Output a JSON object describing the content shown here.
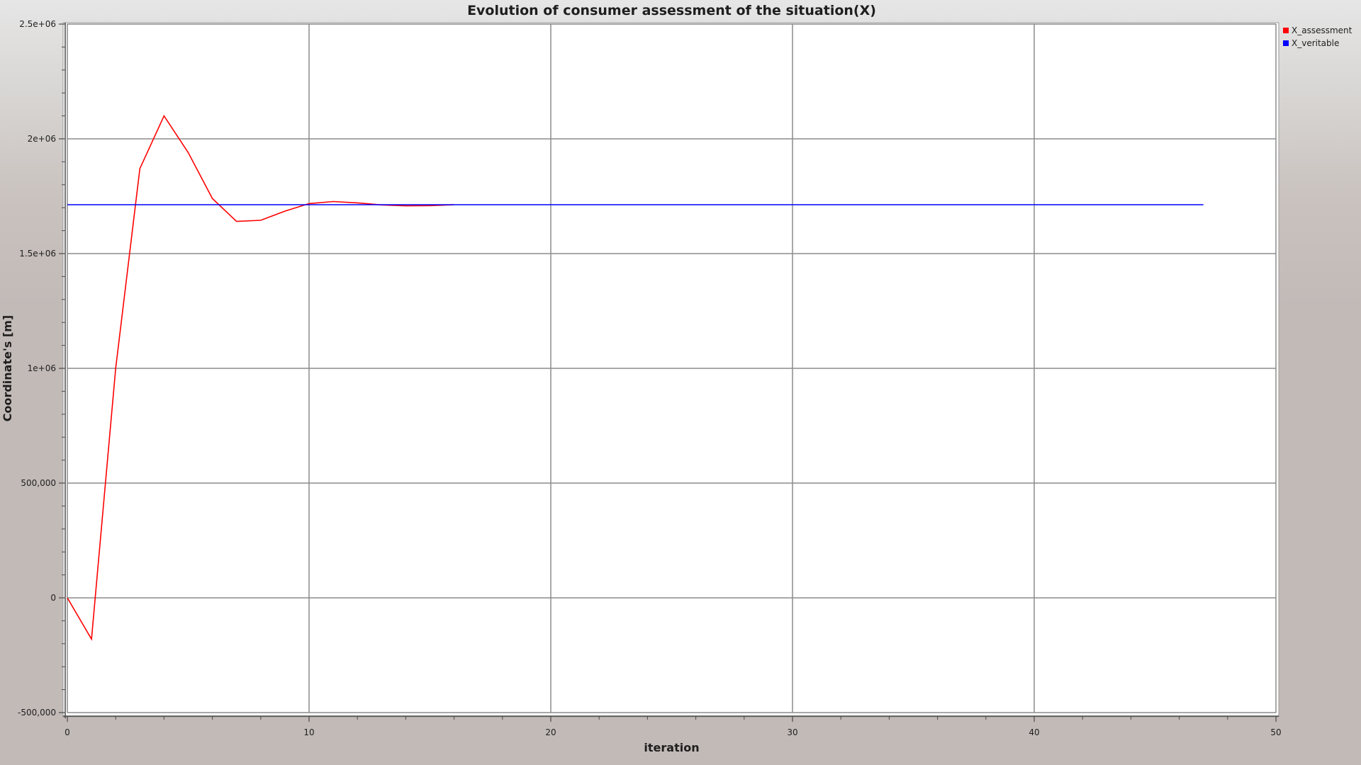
{
  "chart_data": {
    "type": "line",
    "title": "Evolution of consumer assessment of the situation(X)",
    "xlabel": "iteration",
    "ylabel": "Coordinate's [m]",
    "xlim": [
      0,
      50
    ],
    "ylim": [
      -500000,
      2500000
    ],
    "x_ticks": [
      0,
      10,
      20,
      30,
      40,
      50
    ],
    "x_tick_labels": [
      "0",
      "10",
      "20",
      "30",
      "40",
      "50"
    ],
    "y_ticks": [
      -500000,
      0,
      500000,
      1000000,
      1500000,
      2000000,
      2500000
    ],
    "y_tick_labels": [
      "-500,000",
      "0",
      "500,000",
      "1e+06",
      "1.5e+06",
      "2e+06",
      "2.5e+06"
    ],
    "grid": true,
    "legend_position": "top-right",
    "series": [
      {
        "name": "X_assessment",
        "color": "#ff0000",
        "x": [
          0,
          1,
          2,
          3,
          4,
          5,
          6,
          7,
          8,
          9,
          10,
          11,
          12,
          13,
          14,
          15,
          16
        ],
        "y": [
          0,
          -180000,
          1000000,
          1870000,
          2100000,
          1940000,
          1740000,
          1640000,
          1645000,
          1685000,
          1718000,
          1727000,
          1721000,
          1712000,
          1708000,
          1709000,
          1713000
        ]
      },
      {
        "name": "X_veritable",
        "color": "#0000ff",
        "x": [
          0,
          47
        ],
        "y": [
          1713000,
          1713000
        ]
      }
    ]
  }
}
